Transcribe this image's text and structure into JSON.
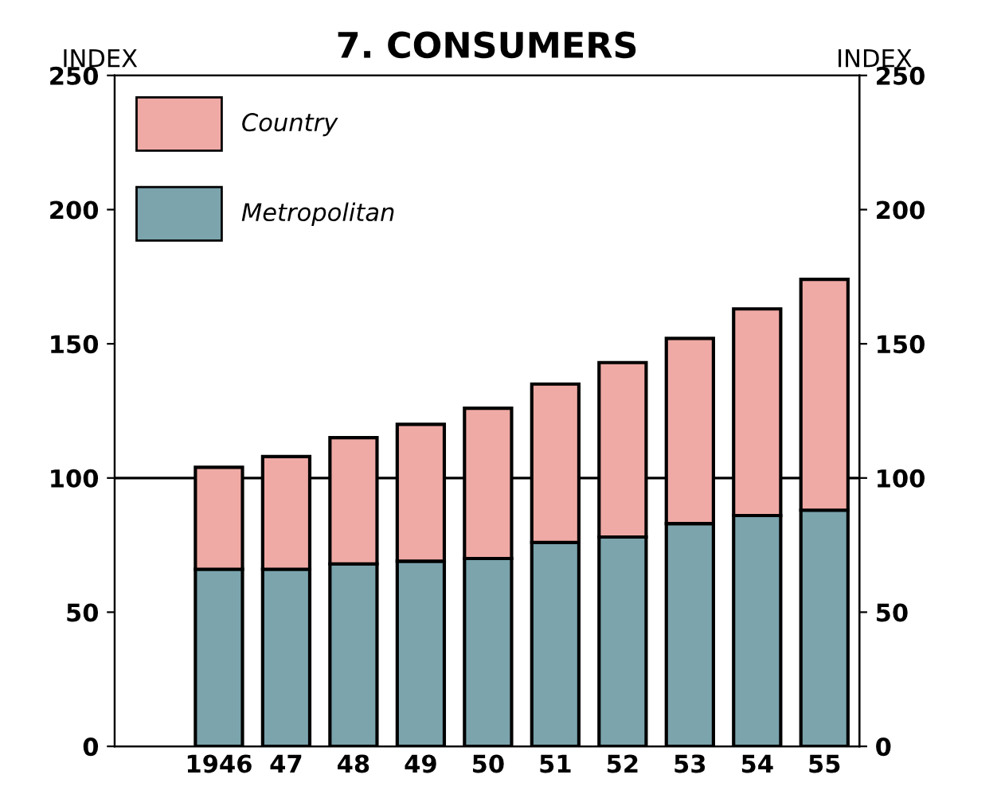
{
  "chart_data": {
    "type": "bar",
    "title": "7. CONSUMERS",
    "ylabel": "INDEX",
    "y2label": "INDEX",
    "categories": [
      "1946",
      "47",
      "48",
      "49",
      "50",
      "51",
      "52",
      "53",
      "54",
      "55"
    ],
    "stacked": true,
    "series": [
      {
        "name": "Metropolitan",
        "color": "#7ba4ad",
        "values": [
          66,
          66,
          68,
          69,
          70,
          76,
          78,
          83,
          86,
          88
        ]
      },
      {
        "name": "Country",
        "color": "#f0aaa5",
        "values": [
          38,
          42,
          47,
          51,
          56,
          59,
          65,
          69,
          77,
          86
        ]
      }
    ],
    "ylim": [
      0,
      250
    ],
    "yticks": [
      0,
      50,
      100,
      150,
      200,
      250
    ],
    "y2lim": [
      0,
      250
    ],
    "y2ticks": [
      0,
      50,
      100,
      150,
      200,
      250
    ],
    "ref_lines": [
      {
        "axis": "y",
        "value": 100,
        "label": null,
        "color": "#000000"
      }
    ],
    "legend": "top left",
    "grid": false
  }
}
